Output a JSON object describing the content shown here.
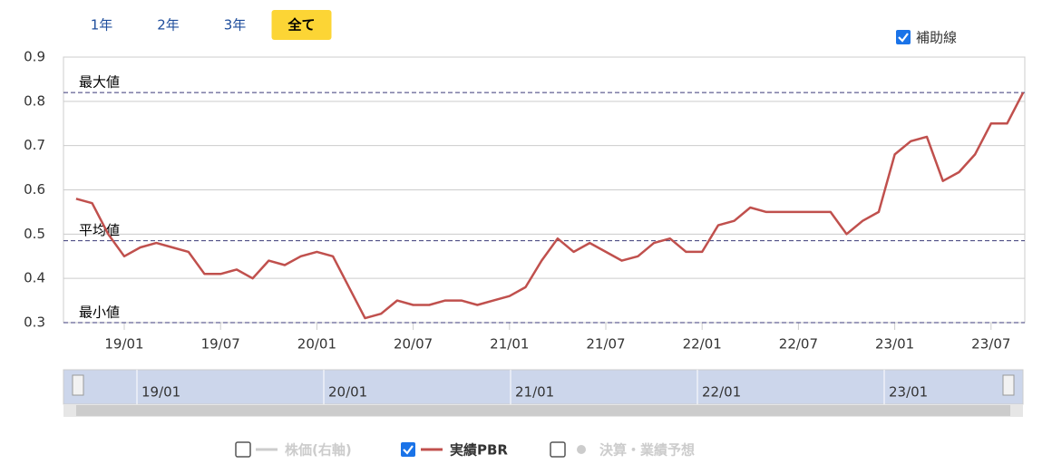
{
  "range_buttons": [
    "1年",
    "2年",
    "3年",
    "全て"
  ],
  "active_button": 3,
  "guide_checkbox": {
    "label": "補助線",
    "checked": true
  },
  "chart_data": {
    "type": "line",
    "x": [
      "18/10",
      "18/11",
      "18/12",
      "19/01",
      "19/02",
      "19/03",
      "19/04",
      "19/05",
      "19/06",
      "19/07",
      "19/08",
      "19/09",
      "19/10",
      "19/11",
      "19/12",
      "20/01",
      "20/02",
      "20/03",
      "20/04",
      "20/05",
      "20/06",
      "20/07",
      "20/08",
      "20/09",
      "20/10",
      "20/11",
      "20/12",
      "21/01",
      "21/02",
      "21/03",
      "21/04",
      "21/05",
      "21/06",
      "21/07",
      "21/08",
      "21/09",
      "21/10",
      "21/11",
      "21/12",
      "22/01",
      "22/02",
      "22/03",
      "22/04",
      "22/05",
      "22/06",
      "22/07",
      "22/08",
      "22/09",
      "22/10",
      "22/11",
      "22/12",
      "23/01",
      "23/02",
      "23/03",
      "23/04",
      "23/05",
      "23/06",
      "23/07",
      "23/08",
      "23/09"
    ],
    "series": [
      {
        "name": "実績PBR",
        "color": "#c0504d",
        "values": [
          0.58,
          0.57,
          0.5,
          0.45,
          0.47,
          0.48,
          0.47,
          0.46,
          0.41,
          0.41,
          0.42,
          0.4,
          0.44,
          0.43,
          0.45,
          0.46,
          0.45,
          0.38,
          0.31,
          0.32,
          0.35,
          0.34,
          0.34,
          0.35,
          0.35,
          0.34,
          0.35,
          0.36,
          0.38,
          0.44,
          0.49,
          0.46,
          0.48,
          0.46,
          0.44,
          0.45,
          0.48,
          0.49,
          0.46,
          0.46,
          0.52,
          0.53,
          0.56,
          0.55,
          0.55,
          0.55,
          0.55,
          0.55,
          0.5,
          0.53,
          0.55,
          0.68,
          0.71,
          0.72,
          0.62,
          0.64,
          0.68,
          0.75,
          0.75,
          0.82
        ]
      }
    ],
    "xticks": [
      "19/01",
      "19/07",
      "20/01",
      "20/07",
      "21/01",
      "21/07",
      "22/01",
      "22/07",
      "23/01",
      "23/07"
    ],
    "ylim": [
      0.3,
      0.9
    ],
    "yticks": [
      0.3,
      0.4,
      0.5,
      0.6,
      0.7,
      0.8,
      0.9
    ],
    "grid": true,
    "reference_lines": [
      {
        "label": "最大値",
        "value": 0.82
      },
      {
        "label": "平均値",
        "value": 0.485
      },
      {
        "label": "最小値",
        "value": 0.3
      }
    ],
    "navigator_ticks": [
      "19/01",
      "20/01",
      "21/01",
      "22/01",
      "23/01"
    ],
    "legend": [
      {
        "name": "株価(右軸)",
        "checked": false,
        "color": "#cccccc"
      },
      {
        "name": "実績PBR",
        "checked": true,
        "color": "#c0504d"
      },
      {
        "name": "決算・業績予想",
        "checked": false,
        "color": "#cccccc"
      }
    ]
  }
}
